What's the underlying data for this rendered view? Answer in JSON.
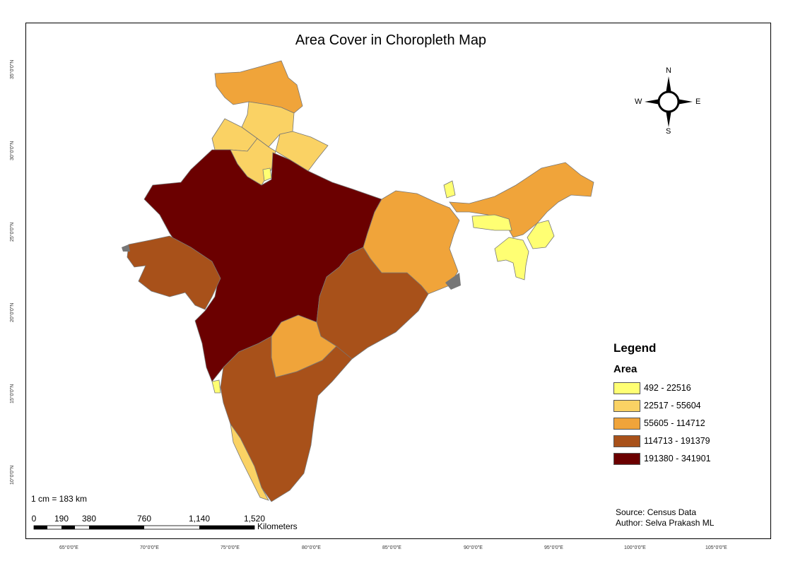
{
  "title": "Area Cover in Choropleth Map",
  "legend": {
    "heading": "Legend",
    "field": "Area",
    "classes": [
      {
        "label": "492 - 22516",
        "color": "#ffff73"
      },
      {
        "label": "22517 - 55604",
        "color": "#fad264"
      },
      {
        "label": "55605 - 114712",
        "color": "#f0a43a"
      },
      {
        "label": "114713 - 191379",
        "color": "#a8511a"
      },
      {
        "label": "191380 - 341901",
        "color": "#6b0000"
      }
    ]
  },
  "scale": {
    "ratio_text": "1 cm = 183 km",
    "labels": [
      "0",
      "190",
      "380",
      "760",
      "1,140",
      "1,520"
    ],
    "unit": "Kilometers"
  },
  "compass": {
    "n": "N",
    "s": "S",
    "e": "E",
    "w": "W"
  },
  "credits": {
    "source": "Source: Census Data",
    "author": "Author: Selva Prakash ML"
  },
  "graticule": {
    "longitudes": [
      "65°0'0\"E",
      "70°0'0\"E",
      "75°0'0\"E",
      "80°0'0\"E",
      "85°0'0\"E",
      "90°0'0\"E",
      "95°0'0\"E",
      "100°0'0\"E",
      "105°0'0\"E"
    ],
    "latitudes": [
      "35°0'0\"N",
      "30°0'0\"N",
      "25°0'0\"N",
      "20°0'0\"N",
      "15°0'0\"N",
      "10°0'0\"N"
    ]
  }
}
